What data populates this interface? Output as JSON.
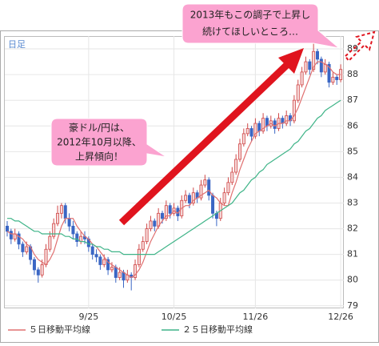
{
  "chart_data": {
    "type": "candlestick",
    "title": "日足",
    "x": [
      null,
      null,
      null,
      null,
      null,
      null,
      null,
      null,
      null,
      null,
      null,
      null,
      null,
      null,
      null,
      null,
      null,
      null,
      null,
      null,
      null,
      "9/25",
      null,
      null,
      null,
      null,
      null,
      null,
      null,
      null,
      null,
      null,
      null,
      null,
      null,
      null,
      null,
      null,
      null,
      null,
      null,
      null,
      null,
      "10/25",
      null,
      null,
      null,
      null,
      null,
      null,
      null,
      null,
      null,
      null,
      null,
      null,
      null,
      null,
      null,
      null,
      null,
      null,
      null,
      null,
      "11/26",
      null,
      null,
      null,
      null,
      null,
      null,
      null,
      null,
      null,
      null,
      null,
      null,
      null,
      null,
      null,
      null,
      null,
      null,
      null,
      null,
      null,
      "12/26"
    ],
    "ohlc": [
      [
        82.1,
        82.3,
        81.7,
        81.9
      ],
      [
        81.9,
        82.0,
        81.4,
        81.6
      ],
      [
        81.6,
        82.0,
        81.5,
        81.8
      ],
      [
        81.8,
        81.9,
        81.2,
        81.4
      ],
      [
        81.4,
        81.5,
        80.9,
        81.1
      ],
      [
        81.1,
        81.5,
        81.0,
        81.3
      ],
      [
        81.3,
        81.4,
        80.6,
        80.8
      ],
      [
        80.8,
        80.9,
        80.2,
        80.4
      ],
      [
        80.4,
        80.5,
        79.9,
        80.2
      ],
      [
        80.2,
        80.8,
        80.1,
        80.6
      ],
      [
        80.6,
        81.4,
        80.5,
        81.2
      ],
      [
        81.2,
        81.9,
        81.1,
        81.7
      ],
      [
        81.7,
        82.4,
        81.6,
        82.2
      ],
      [
        82.2,
        82.9,
        82.1,
        82.6
      ],
      [
        82.6,
        83.0,
        82.4,
        82.9
      ],
      [
        82.9,
        83.0,
        82.2,
        82.4
      ],
      [
        82.4,
        82.6,
        81.9,
        82.1
      ],
      [
        82.1,
        82.3,
        81.6,
        81.8
      ],
      [
        81.8,
        81.9,
        81.3,
        81.5
      ],
      [
        81.5,
        81.9,
        81.4,
        81.7
      ],
      [
        81.7,
        81.9,
        81.4,
        81.6
      ],
      [
        81.6,
        81.7,
        81.1,
        81.3
      ],
      [
        81.3,
        81.4,
        80.8,
        81.0
      ],
      [
        81.0,
        81.2,
        80.7,
        80.9
      ],
      [
        80.9,
        81.0,
        80.4,
        80.6
      ],
      [
        80.6,
        81.0,
        80.5,
        80.8
      ],
      [
        80.8,
        80.9,
        80.2,
        80.4
      ],
      [
        80.4,
        80.7,
        80.3,
        80.5
      ],
      [
        80.5,
        80.6,
        79.9,
        80.1
      ],
      [
        80.1,
        80.5,
        80.0,
        80.3
      ],
      [
        80.3,
        80.4,
        79.7,
        80.0
      ],
      [
        80.0,
        80.4,
        79.9,
        80.2
      ],
      [
        80.2,
        80.3,
        79.6,
        80.1
      ],
      [
        80.1,
        80.8,
        80.0,
        80.6
      ],
      [
        80.6,
        81.4,
        80.5,
        81.2
      ],
      [
        81.2,
        81.7,
        81.1,
        81.5
      ],
      [
        81.5,
        82.2,
        81.4,
        82.0
      ],
      [
        82.0,
        82.5,
        81.9,
        82.3
      ],
      [
        82.3,
        82.4,
        81.9,
        82.1
      ],
      [
        82.1,
        82.8,
        82.0,
        82.6
      ],
      [
        82.6,
        82.7,
        82.2,
        82.4
      ],
      [
        82.4,
        83.1,
        82.3,
        82.9
      ],
      [
        82.9,
        83.0,
        82.4,
        82.6
      ],
      [
        82.6,
        83.0,
        82.5,
        82.8
      ],
      [
        82.8,
        82.9,
        82.3,
        82.5
      ],
      [
        82.5,
        83.3,
        82.4,
        83.1
      ],
      [
        83.1,
        83.5,
        83.0,
        83.3
      ],
      [
        83.3,
        83.4,
        82.8,
        83.0
      ],
      [
        83.0,
        83.6,
        82.9,
        83.4
      ],
      [
        83.4,
        83.5,
        83.0,
        83.2
      ],
      [
        83.2,
        83.9,
        83.1,
        83.7
      ],
      [
        83.7,
        84.1,
        83.6,
        83.9
      ],
      [
        83.9,
        84.0,
        83.1,
        83.3
      ],
      [
        83.3,
        83.4,
        82.4,
        82.6
      ],
      [
        82.6,
        82.7,
        82.1,
        82.4
      ],
      [
        82.4,
        83.2,
        82.3,
        83.0
      ],
      [
        83.0,
        83.6,
        82.9,
        83.4
      ],
      [
        83.4,
        84.0,
        83.3,
        83.8
      ],
      [
        83.8,
        84.4,
        83.7,
        84.2
      ],
      [
        84.2,
        84.9,
        84.1,
        84.7
      ],
      [
        84.7,
        85.5,
        84.6,
        85.3
      ],
      [
        85.3,
        85.9,
        85.2,
        85.7
      ],
      [
        85.7,
        86.1,
        85.6,
        85.9
      ],
      [
        85.9,
        86.0,
        85.4,
        85.6
      ],
      [
        85.6,
        86.3,
        85.5,
        86.1
      ],
      [
        86.1,
        86.2,
        85.6,
        85.8
      ],
      [
        85.8,
        86.5,
        85.7,
        86.3
      ],
      [
        86.3,
        86.4,
        85.8,
        86.0
      ],
      [
        86.0,
        86.4,
        85.9,
        86.2
      ],
      [
        86.2,
        86.3,
        85.7,
        85.9
      ],
      [
        85.9,
        86.5,
        85.8,
        86.3
      ],
      [
        86.3,
        86.4,
        85.9,
        86.1
      ],
      [
        86.1,
        86.6,
        86.0,
        86.4
      ],
      [
        86.4,
        86.5,
        86.0,
        86.2
      ],
      [
        86.2,
        87.2,
        86.1,
        87.0
      ],
      [
        87.0,
        87.8,
        86.9,
        87.6
      ],
      [
        87.6,
        88.3,
        87.5,
        88.1
      ],
      [
        88.1,
        88.7,
        88.0,
        88.5
      ],
      [
        88.5,
        88.6,
        88.0,
        88.2
      ],
      [
        88.2,
        89.2,
        88.1,
        88.9
      ],
      [
        88.9,
        89.0,
        88.4,
        88.6
      ],
      [
        88.6,
        88.7,
        87.9,
        88.1
      ],
      [
        88.1,
        88.6,
        88.0,
        88.4
      ],
      [
        88.4,
        88.5,
        87.5,
        87.7
      ],
      [
        87.7,
        88.1,
        87.6,
        87.9
      ],
      [
        87.9,
        88.0,
        87.6,
        87.8
      ],
      [
        87.8,
        88.4,
        87.7,
        88.2
      ]
    ],
    "up_color": "#d04848",
    "down_color": "#3a66c4",
    "series": [
      {
        "name": "５日移動平均線",
        "color": "#e07070",
        "values": [
          81.9,
          81.8,
          81.8,
          81.7,
          81.6,
          81.4,
          81.3,
          81.0,
          80.8,
          80.7,
          80.6,
          80.8,
          81.1,
          81.6,
          82.1,
          82.4,
          82.4,
          82.4,
          82.1,
          81.9,
          81.7,
          81.6,
          81.4,
          81.3,
          81.1,
          80.9,
          80.7,
          80.6,
          80.5,
          80.4,
          80.3,
          80.2,
          80.1,
          80.2,
          80.4,
          80.7,
          81.1,
          81.5,
          81.8,
          82.1,
          82.3,
          82.5,
          82.5,
          82.7,
          82.6,
          82.8,
          82.9,
          82.9,
          83.1,
          83.2,
          83.3,
          83.4,
          83.5,
          83.3,
          83.2,
          83.0,
          82.9,
          82.9,
          83.4,
          83.8,
          84.3,
          84.7,
          85.1,
          85.4,
          85.7,
          85.8,
          85.9,
          86.0,
          86.1,
          86.0,
          86.1,
          86.1,
          86.2,
          86.2,
          86.4,
          86.7,
          87.1,
          87.5,
          87.9,
          88.3,
          88.5,
          88.5,
          88.4,
          88.3,
          88.1,
          88.0,
          88.0
        ]
      },
      {
        "name": "２５日移動平均線",
        "color": "#3fb488",
        "values": [
          82.4,
          82.4,
          82.3,
          82.3,
          82.2,
          82.1,
          82.0,
          81.9,
          81.9,
          81.8,
          81.8,
          81.8,
          81.8,
          81.8,
          81.8,
          81.7,
          81.7,
          81.6,
          81.6,
          81.5,
          81.5,
          81.4,
          81.4,
          81.3,
          81.3,
          81.2,
          81.2,
          81.1,
          81.1,
          81.1,
          81.0,
          81.0,
          81.0,
          81.0,
          81.0,
          81.0,
          81.0,
          81.0,
          81.0,
          81.1,
          81.2,
          81.3,
          81.4,
          81.5,
          81.6,
          81.7,
          81.8,
          81.9,
          82.0,
          82.1,
          82.2,
          82.3,
          82.4,
          82.5,
          82.6,
          82.7,
          82.8,
          82.9,
          83.0,
          83.2,
          83.4,
          83.5,
          83.7,
          83.9,
          84.0,
          84.2,
          84.3,
          84.5,
          84.6,
          84.7,
          84.8,
          84.9,
          85.0,
          85.1,
          85.3,
          85.4,
          85.6,
          85.8,
          85.9,
          86.1,
          86.3,
          86.4,
          86.6,
          86.7,
          86.8,
          86.9,
          87.0
        ]
      }
    ],
    "ylim": [
      78.9,
      89.5
    ],
    "yticks": [
      79,
      80,
      81,
      82,
      83,
      84,
      85,
      86,
      87,
      88,
      89
    ],
    "grid": true,
    "annotations": [
      {
        "lines": [
          "豪ドル/円は、",
          "2012年10月以降、",
          "上昇傾向！"
        ]
      },
      {
        "lines": [
          "2013年もこの調子で上昇し",
          "続けてほしいところ…"
        ]
      }
    ]
  }
}
